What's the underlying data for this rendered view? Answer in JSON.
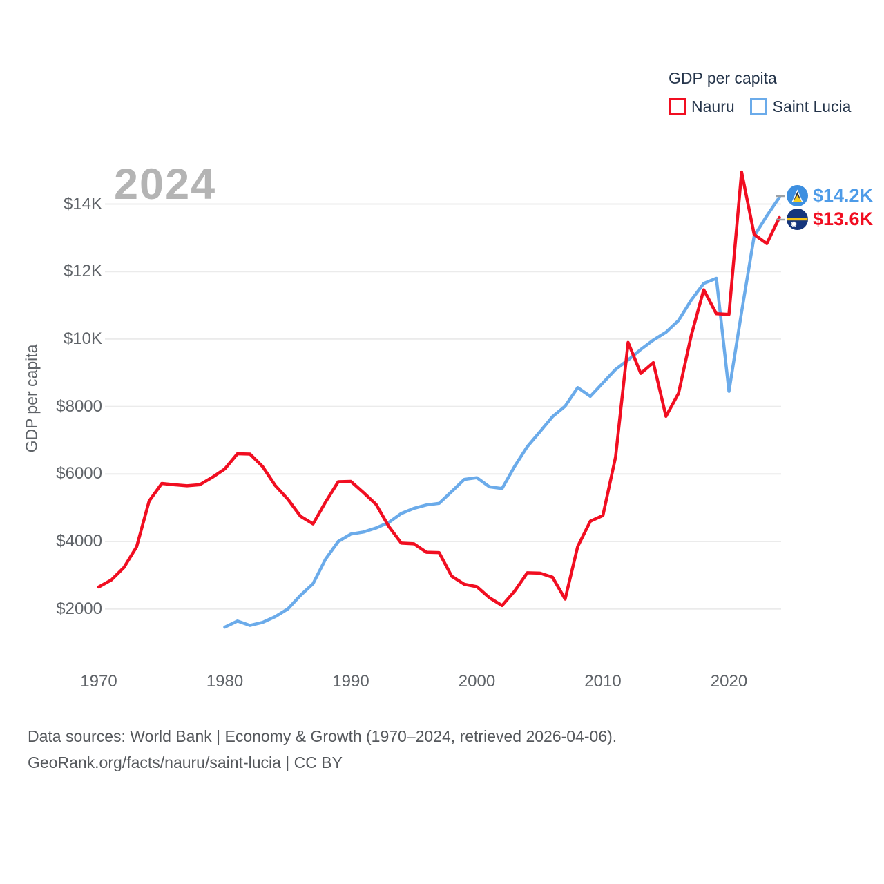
{
  "legend": {
    "title": "GDP per capita",
    "items": [
      {
        "label": "Nauru",
        "color": "#f10e21"
      },
      {
        "label": "Saint Lucia",
        "color": "#6babea"
      }
    ]
  },
  "watermark": "2024",
  "y_axis": {
    "title": "GDP per capita",
    "ticks": [
      {
        "value": 14000,
        "label": "$14K"
      },
      {
        "value": 12000,
        "label": "$12K"
      },
      {
        "value": 10000,
        "label": "$10K"
      },
      {
        "value": 8000,
        "label": "$8000"
      },
      {
        "value": 6000,
        "label": "$6000"
      },
      {
        "value": 4000,
        "label": "$4000"
      },
      {
        "value": 2000,
        "label": "$2000"
      }
    ]
  },
  "x_axis": {
    "ticks": [
      {
        "value": 1970,
        "label": "1970"
      },
      {
        "value": 1980,
        "label": "1980"
      },
      {
        "value": 1990,
        "label": "1990"
      },
      {
        "value": 2000,
        "label": "2000"
      },
      {
        "value": 2010,
        "label": "2010"
      },
      {
        "value": 2020,
        "label": "2020"
      }
    ]
  },
  "end_labels": [
    {
      "series": "Saint Lucia",
      "label": "$14.2K",
      "value": 14200,
      "color": "#4d9be8",
      "flag": "saint-lucia-flag"
    },
    {
      "series": "Nauru",
      "label": "$13.6K",
      "value": 13600,
      "color": "#f10e21",
      "flag": "nauru-flag"
    }
  ],
  "footer": {
    "line1": "Data sources: World Bank | Economy & Growth (1970–2024, retrieved 2026-04-06).",
    "line2": "GeoRank.org/facts/nauru/saint-lucia | CC BY"
  },
  "chart_data": {
    "type": "line",
    "title": "GDP per capita",
    "ylabel": "GDP per capita",
    "ylim": [
      1000,
      15500
    ],
    "grid_values": [
      2000,
      4000,
      6000,
      8000,
      10000,
      12000,
      14000
    ],
    "grid": true,
    "legend_position": "top-right",
    "x": [
      1970,
      1971,
      1972,
      1973,
      1974,
      1975,
      1976,
      1977,
      1978,
      1979,
      1980,
      1981,
      1982,
      1983,
      1984,
      1985,
      1986,
      1987,
      1988,
      1989,
      1990,
      1991,
      1992,
      1993,
      1994,
      1995,
      1996,
      1997,
      1998,
      1999,
      2000,
      2001,
      2002,
      2003,
      2004,
      2005,
      2006,
      2007,
      2008,
      2009,
      2010,
      2011,
      2012,
      2013,
      2014,
      2015,
      2016,
      2017,
      2018,
      2019,
      2020,
      2021,
      2022,
      2023,
      2024
    ],
    "series": [
      {
        "name": "Saint Lucia",
        "color": "#6babea",
        "values": [
          null,
          null,
          null,
          null,
          null,
          null,
          null,
          null,
          null,
          null,
          1460,
          1640,
          1510,
          1600,
          1770,
          2000,
          2400,
          2750,
          3480,
          4000,
          4220,
          4280,
          4400,
          4560,
          4830,
          4980,
          5080,
          5130,
          5480,
          5840,
          5890,
          5620,
          5570,
          6230,
          6810,
          7250,
          7700,
          8010,
          8560,
          8300,
          8700,
          9100,
          9380,
          9690,
          9970,
          10200,
          10550,
          11150,
          11650,
          11800,
          8450,
          10800,
          13050,
          13650,
          14200
        ]
      },
      {
        "name": "Nauru",
        "color": "#f10e21",
        "values": [
          2650,
          2860,
          3230,
          3840,
          5200,
          5720,
          5680,
          5650,
          5680,
          5900,
          6150,
          6600,
          6590,
          6220,
          5660,
          5250,
          4750,
          4520,
          5170,
          5770,
          5780,
          5450,
          5100,
          4450,
          3950,
          3930,
          3680,
          3670,
          2970,
          2730,
          2660,
          2330,
          2100,
          2530,
          3070,
          3060,
          2940,
          2290,
          3850,
          4600,
          4770,
          6500,
          9900,
          8980,
          9300,
          7710,
          8390,
          10100,
          11460,
          10750,
          10730,
          14950,
          13100,
          12830,
          13600
        ]
      }
    ],
    "end_values": {
      "Nauru": 13600,
      "Saint Lucia": 14200
    }
  }
}
